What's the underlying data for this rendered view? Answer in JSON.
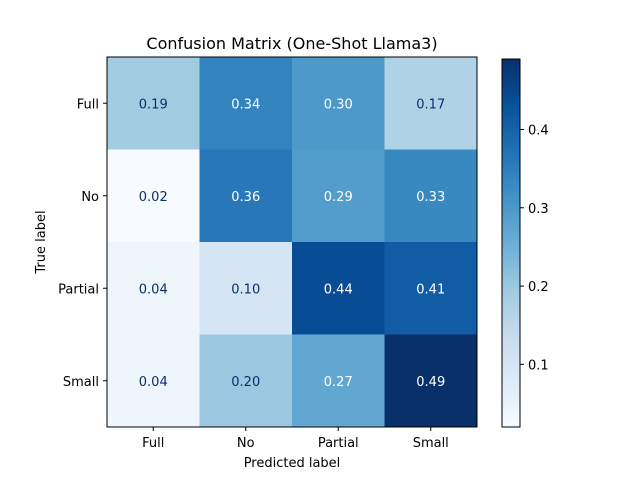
{
  "chart_data": {
    "type": "heatmap",
    "title": "Confusion Matrix (One-Shot Llama3)",
    "xlabel": "Predicted label",
    "ylabel": "True label",
    "x_categories": [
      "Full",
      "No",
      "Partial",
      "Small"
    ],
    "y_categories": [
      "Full",
      "No",
      "Partial",
      "Small"
    ],
    "values": [
      [
        0.19,
        0.34,
        0.3,
        0.17
      ],
      [
        0.02,
        0.36,
        0.29,
        0.33
      ],
      [
        0.04,
        0.1,
        0.44,
        0.41
      ],
      [
        0.04,
        0.2,
        0.27,
        0.49
      ]
    ],
    "colormap": "Blues",
    "colorbar": {
      "range": [
        0.02,
        0.49
      ],
      "ticks": [
        0.1,
        0.2,
        0.3,
        0.4
      ],
      "tick_labels": [
        "0.1",
        "0.2",
        "0.3",
        "0.4"
      ]
    },
    "grid": false
  }
}
